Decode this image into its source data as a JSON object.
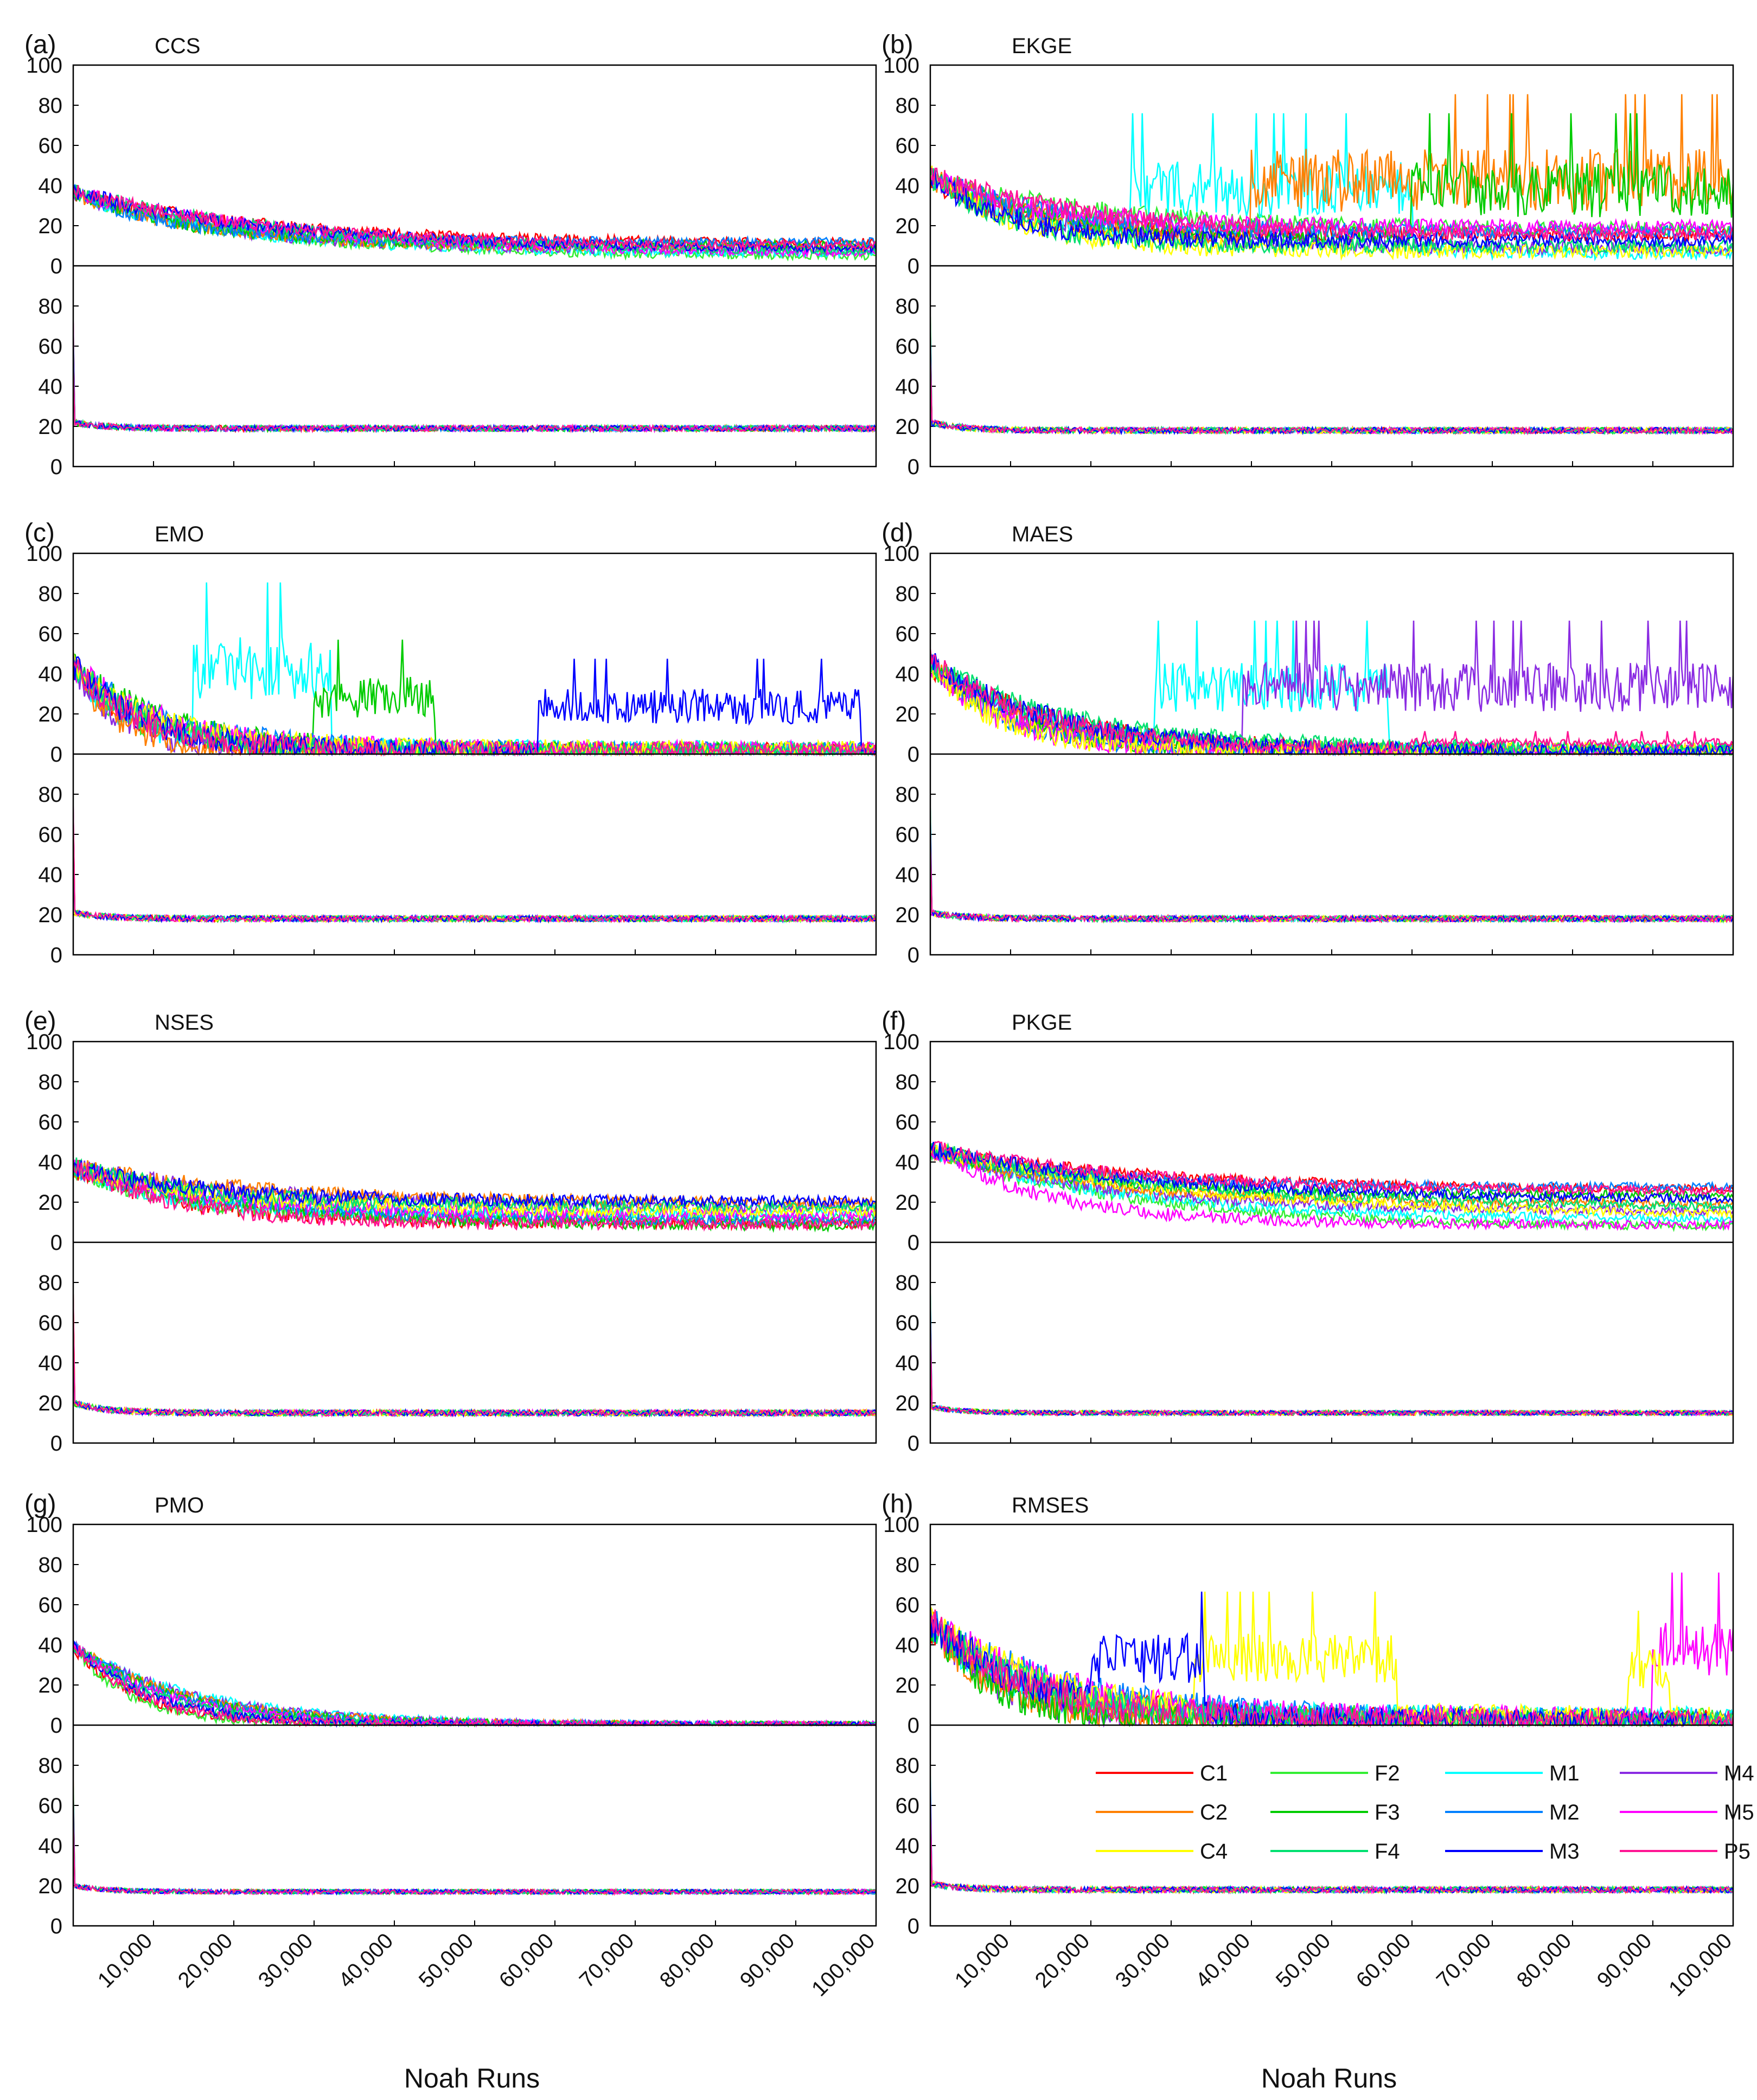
{
  "figure": {
    "xlabel": "Noah Runs",
    "x_ticks": [
      "10,000",
      "20,000",
      "30,000",
      "40,000",
      "50,000",
      "60,000",
      "70,000",
      "80,000",
      "90,000",
      "100,000"
    ],
    "upper_y_ticks": [
      "100",
      "80",
      "60",
      "40",
      "20",
      "0"
    ],
    "lower_y_ticks": [
      "80",
      "60",
      "40",
      "20",
      "0"
    ]
  },
  "legend": {
    "placement": "bottom panel (h), upper-right of lower subplot",
    "entries": [
      {
        "label": "C1",
        "color": "#ff0000"
      },
      {
        "label": "F2",
        "color": "#33ee33"
      },
      {
        "label": "M1",
        "color": "#00ffff"
      },
      {
        "label": "M4",
        "color": "#8a2be2"
      },
      {
        "label": "C2",
        "color": "#ff8000"
      },
      {
        "label": "F3",
        "color": "#00cc00"
      },
      {
        "label": "M2",
        "color": "#0080ff"
      },
      {
        "label": "M5",
        "color": "#ff00ff"
      },
      {
        "label": "C4",
        "color": "#ffff00"
      },
      {
        "label": "F4",
        "color": "#00e070"
      },
      {
        "label": "M3",
        "color": "#0000ff"
      },
      {
        "label": "P5",
        "color": "#ff1493"
      }
    ]
  },
  "chart_data": [
    {
      "type": "line",
      "panel": "(a)",
      "title": "CCS",
      "xlabel": "Noah Runs",
      "xlim": [
        0,
        100000
      ],
      "ylim_upper": [
        0,
        100
      ],
      "ylim_lower": [
        0,
        100
      ],
      "series_colors": [
        "#ff0000",
        "#33ee33",
        "#00ffff",
        "#8a2be2",
        "#ff8000",
        "#00cc00",
        "#0080ff",
        "#ff00ff",
        "#00e070",
        "#0000ff",
        "#ff1493"
      ],
      "upper": {
        "start": [
          30,
          55
        ],
        "end": [
          4,
          12
        ],
        "tau": 22000,
        "noise": 4,
        "spikes": []
      },
      "lower": {
        "start": 22,
        "end": 19,
        "noise": 1.5
      }
    },
    {
      "type": "line",
      "panel": "(b)",
      "title": "EKGE",
      "xlabel": "Noah Runs",
      "xlim": [
        0,
        100000
      ],
      "ylim_upper": [
        0,
        100
      ],
      "ylim_lower": [
        0,
        100
      ],
      "series_colors": [
        "#ff0000",
        "#33ee33",
        "#00ffff",
        "#8a2be2",
        "#ff8000",
        "#00cc00",
        "#0080ff",
        "#ff00ff",
        "#ffff00",
        "#00e070",
        "#0000ff",
        "#ff1493"
      ],
      "upper": {
        "start": [
          35,
          65
        ],
        "end": [
          5,
          20
        ],
        "tau": 15000,
        "noise": 6,
        "spikes": [
          {
            "series": "#ff8000",
            "from": 40000,
            "to": 100000,
            "level": 45
          },
          {
            "series": "#00cc00",
            "from": 60000,
            "to": 100000,
            "level": 40
          },
          {
            "series": "#00ffff",
            "from": 25000,
            "to": 60000,
            "level": 40
          }
        ]
      },
      "lower": {
        "start": 22,
        "end": 18,
        "noise": 1.5
      }
    },
    {
      "type": "line",
      "panel": "(c)",
      "title": "EMO",
      "xlabel": "Noah Runs",
      "xlim": [
        0,
        100000
      ],
      "ylim_upper": [
        0,
        100
      ],
      "ylim_lower": [
        0,
        100
      ],
      "series_colors": [
        "#ff0000",
        "#33ee33",
        "#00ffff",
        "#8a2be2",
        "#ff8000",
        "#00cc00",
        "#0080ff",
        "#ff00ff",
        "#ffff00",
        "#00e070",
        "#0000ff",
        "#ff1493"
      ],
      "upper": {
        "start": [
          30,
          70
        ],
        "end": [
          1,
          3
        ],
        "tau": 9000,
        "noise": 7,
        "spikes": [
          {
            "series": "#00ffff",
            "from": 15000,
            "to": 32000,
            "level": 45
          },
          {
            "series": "#0000ff",
            "from": 58000,
            "to": 98000,
            "level": 25
          },
          {
            "series": "#00cc00",
            "from": 30000,
            "to": 45000,
            "level": 30
          }
        ]
      },
      "lower": {
        "start": 21,
        "end": 18,
        "noise": 1.5
      }
    },
    {
      "type": "line",
      "panel": "(d)",
      "title": "MAES",
      "xlabel": "Noah Runs",
      "xlim": [
        0,
        100000
      ],
      "ylim_upper": [
        0,
        100
      ],
      "ylim_lower": [
        0,
        100
      ],
      "series_colors": [
        "#ff0000",
        "#33ee33",
        "#00ffff",
        "#8a2be2",
        "#ff8000",
        "#00cc00",
        "#0080ff",
        "#ff00ff",
        "#ffff00",
        "#00e070",
        "#0000ff",
        "#ff1493"
      ],
      "upper": {
        "start": [
          30,
          70
        ],
        "end": [
          1,
          3
        ],
        "tau": 12000,
        "noise": 6,
        "spikes": [
          {
            "series": "#8a2be2",
            "from": 39000,
            "to": 100000,
            "level": 35
          },
          {
            "series": "#00ffff",
            "from": 28000,
            "to": 57000,
            "level": 35
          },
          {
            "series": "#ff1493",
            "from": 60000,
            "to": 100000,
            "level": 6
          }
        ]
      },
      "lower": {
        "start": 21,
        "end": 18,
        "noise": 1.5
      }
    },
    {
      "type": "line",
      "panel": "(e)",
      "title": "NSES",
      "xlabel": "Noah Runs",
      "xlim": [
        0,
        100000
      ],
      "ylim_upper": [
        0,
        100
      ],
      "ylim_lower": [
        0,
        100
      ],
      "series_colors": [
        "#ff0000",
        "#33ee33",
        "#00ffff",
        "#8a2be2",
        "#ff8000",
        "#00cc00",
        "#0080ff",
        "#ff00ff",
        "#ffff00",
        "#00e070",
        "#0000ff",
        "#ff1493"
      ],
      "upper": {
        "start": [
          25,
          55
        ],
        "end": [
          8,
          22
        ],
        "tau": 18000,
        "noise": 5,
        "spikes": []
      },
      "lower": {
        "start": 20,
        "end": 15,
        "noise": 1.5
      }
    },
    {
      "type": "line",
      "panel": "(f)",
      "title": "PKGE",
      "xlabel": "Noah Runs",
      "xlim": [
        0,
        100000
      ],
      "ylim_upper": [
        0,
        100
      ],
      "ylim_lower": [
        0,
        100
      ],
      "series_colors": [
        "#ff0000",
        "#33ee33",
        "#00ffff",
        "#8a2be2",
        "#ff8000",
        "#00cc00",
        "#0080ff",
        "#ff00ff",
        "#ffff00",
        "#00e070",
        "#0000ff",
        "#ff1493"
      ],
      "upper": {
        "start": [
          35,
          60
        ],
        "end": [
          5,
          28
        ],
        "tau": 25000,
        "noise": 4,
        "spikes": []
      },
      "lower": {
        "start": 18,
        "end": 15,
        "noise": 1.2
      }
    },
    {
      "type": "line",
      "panel": "(g)",
      "title": "PMO",
      "xlabel": "Noah Runs",
      "xlim": [
        0,
        100000
      ],
      "ylim_upper": [
        0,
        100
      ],
      "ylim_lower": [
        0,
        100
      ],
      "series_colors": [
        "#ff0000",
        "#33ee33",
        "#00ffff",
        "#8a2be2",
        "#ff8000",
        "#00cc00",
        "#0080ff",
        "#ff00ff",
        "#00e070",
        "#0000ff",
        "#ff1493"
      ],
      "upper": {
        "start": [
          20,
          60
        ],
        "end": [
          0,
          0.5
        ],
        "tau": 12000,
        "noise": 3,
        "spikes": []
      },
      "lower": {
        "start": 20,
        "end": 17,
        "noise": 1.2
      }
    },
    {
      "type": "line",
      "panel": "(h)",
      "title": "RMSES",
      "xlabel": "Noah Runs",
      "xlim": [
        0,
        100000
      ],
      "ylim_upper": [
        0,
        100
      ],
      "ylim_lower": [
        0,
        100
      ],
      "series_colors": [
        "#ff0000",
        "#33ee33",
        "#00ffff",
        "#8a2be2",
        "#ff8000",
        "#00cc00",
        "#0080ff",
        "#ff00ff",
        "#ffff00",
        "#00e070",
        "#0000ff",
        "#ff1493"
      ],
      "upper": {
        "start": [
          30,
          70
        ],
        "end": [
          1,
          5
        ],
        "tau": 12000,
        "noise": 9,
        "spikes": [
          {
            "series": "#ffff00",
            "from": 33000,
            "to": 58000,
            "level": 35
          },
          {
            "series": "#0000ff",
            "from": 20000,
            "to": 34000,
            "level": 35
          },
          {
            "series": "#ff00ff",
            "from": 90000,
            "to": 100000,
            "level": 40
          },
          {
            "series": "#ffff00",
            "from": 87000,
            "to": 92000,
            "level": 30
          }
        ]
      },
      "lower": {
        "start": 21,
        "end": 18,
        "noise": 1.5
      }
    }
  ]
}
